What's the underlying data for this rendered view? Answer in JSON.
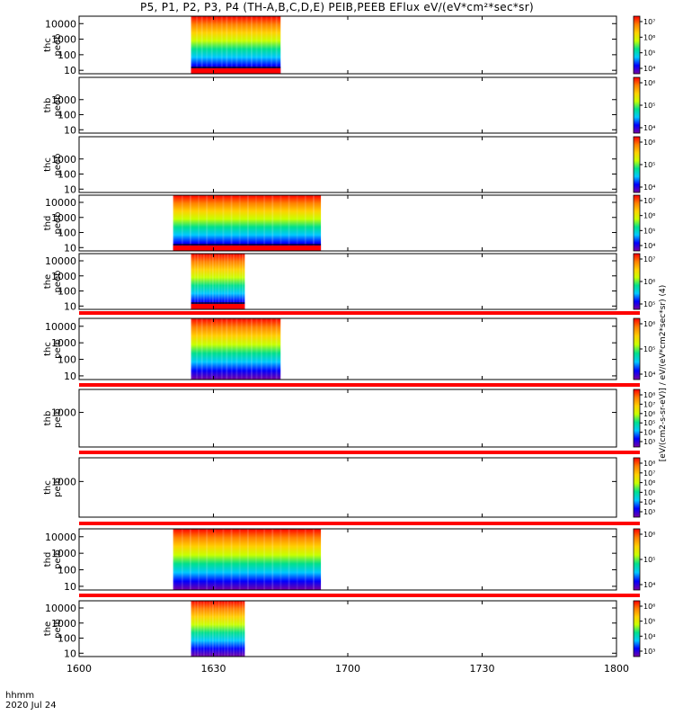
{
  "title": "P5, P1, P2, P3, P4 (TH-A,B,C,D,E) PEIB,PEEB EFlux eV/(eV*cm²*sec*sr)",
  "time_footer": {
    "label": "hhmm",
    "date": "2020 Jul 24"
  },
  "colorbar_caption": "[eV/(cm2-s-sr-eV)] / eV/(eV*cm2*sec*sr) (4)",
  "colors": {
    "colormap": [
      "#7a00a0",
      "#0000ff",
      "#00c8ff",
      "#00e08c",
      "#c8ff00",
      "#ffd000",
      "#ff8000",
      "#ff0000"
    ],
    "separator": "#ff0000",
    "background": "#ffffff"
  },
  "chart_data": {
    "type": "heatmap",
    "x_axis": {
      "label": "hhmm",
      "range": [
        "16:00",
        "18:00"
      ],
      "ticks": [
        "1600",
        "1630",
        "1700",
        "1730",
        "1800"
      ],
      "tick_values_min": [
        0,
        30,
        60,
        90,
        120
      ]
    },
    "y_scale": "log",
    "z_scale": "log",
    "panels": [
      {
        "probe": "thc",
        "product": "peeb",
        "label": [
          "thc",
          "peeb"
        ],
        "yticks": [
          "10000",
          "1000",
          "100",
          "10"
        ],
        "ytick_values": [
          10000,
          1000,
          100,
          10
        ],
        "data_start_min": 25,
        "data_end_min": 45,
        "cbar_ticks": [
          "10⁷",
          "10⁶",
          "10⁵",
          "10⁴"
        ],
        "floor_line": true
      },
      {
        "probe": "thb",
        "product": "peeb",
        "label": [
          "thb",
          "peeb"
        ],
        "yticks": [
          "1000",
          "100",
          "10"
        ],
        "ytick_values": [
          1000,
          100,
          10
        ],
        "data_start_min": null,
        "data_end_min": null,
        "cbar_ticks": [
          "10⁶",
          "10⁵",
          "10⁴"
        ],
        "floor_line": false
      },
      {
        "probe": "thc",
        "product": "peeb",
        "label": [
          "thc",
          "peeb"
        ],
        "yticks": [
          "1000",
          "100",
          "10"
        ],
        "ytick_values": [
          1000,
          100,
          10
        ],
        "data_start_min": null,
        "data_end_min": null,
        "cbar_ticks": [
          "10⁶",
          "10⁵",
          "10⁴"
        ],
        "floor_line": false
      },
      {
        "probe": "thd",
        "product": "peeb",
        "label": [
          "thd",
          "peeb"
        ],
        "yticks": [
          "10000",
          "1000",
          "100",
          "10"
        ],
        "ytick_values": [
          10000,
          1000,
          100,
          10
        ],
        "data_start_min": 21,
        "data_end_min": 54,
        "cbar_ticks": [
          "10⁷",
          "10⁶",
          "10⁵",
          "10⁴"
        ],
        "floor_line": true
      },
      {
        "probe": "the",
        "product": "peeb",
        "label": [
          "the",
          "peeb"
        ],
        "yticks": [
          "10000",
          "1000",
          "100",
          "10"
        ],
        "ytick_values": [
          10000,
          1000,
          100,
          10
        ],
        "data_start_min": 25,
        "data_end_min": 37,
        "cbar_ticks": [
          "10⁷",
          "10⁶",
          "10⁵"
        ],
        "floor_line": true
      },
      {
        "probe": "thc",
        "product": "peib",
        "label": [
          "thc",
          "peib"
        ],
        "yticks": [
          "10000",
          "1000",
          "100",
          "10"
        ],
        "ytick_values": [
          10000,
          1000,
          100,
          10
        ],
        "data_start_min": 25,
        "data_end_min": 45,
        "cbar_ticks": [
          "10⁶",
          "10⁵",
          "10⁴"
        ],
        "floor_line": false
      },
      {
        "probe": "thb",
        "product": "peib",
        "label": [
          "thb",
          "peib"
        ],
        "yticks": [
          "1000"
        ],
        "ytick_values": [
          1000
        ],
        "data_start_min": null,
        "data_end_min": null,
        "cbar_ticks": [
          "10⁸",
          "10⁷",
          "10⁶",
          "10⁵",
          "10⁴",
          "10³"
        ],
        "floor_line": false
      },
      {
        "probe": "thc",
        "product": "peib",
        "label": [
          "thc",
          "peib"
        ],
        "yticks": [
          "1000"
        ],
        "ytick_values": [
          1000
        ],
        "data_start_min": null,
        "data_end_min": null,
        "cbar_ticks": [
          "10⁸",
          "10⁷",
          "10⁶",
          "10⁵",
          "10⁴",
          "10³"
        ],
        "floor_line": false
      },
      {
        "probe": "thd",
        "product": "peib",
        "label": [
          "thd",
          "peib"
        ],
        "yticks": [
          "10000",
          "1000",
          "100",
          "10"
        ],
        "ytick_values": [
          10000,
          1000,
          100,
          10
        ],
        "data_start_min": 21,
        "data_end_min": 54,
        "cbar_ticks": [
          "10⁶",
          "10⁵",
          "10⁴"
        ],
        "floor_line": false
      },
      {
        "probe": "the",
        "product": "peib",
        "label": [
          "the",
          "peib"
        ],
        "yticks": [
          "10000",
          "1000",
          "100",
          "10"
        ],
        "ytick_values": [
          10000,
          1000,
          100,
          10
        ],
        "data_start_min": 25,
        "data_end_min": 37,
        "cbar_ticks": [
          "10⁶",
          "10⁵",
          "10⁴",
          "10³"
        ],
        "floor_line": false
      }
    ]
  }
}
